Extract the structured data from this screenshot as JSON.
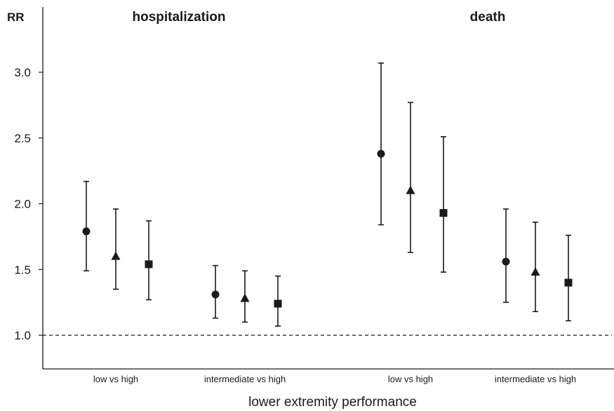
{
  "chart_data": {
    "type": "scatter",
    "ylabel": "RR",
    "xlabel": "lower extremity performance",
    "ylim": [
      0.75,
      3.35
    ],
    "yticks": [
      "1.0",
      "1.5",
      "2.0",
      "2.5",
      "3.0"
    ],
    "ytick_values": [
      1.0,
      1.5,
      2.0,
      2.5,
      3.0
    ],
    "reference_line": 1.0,
    "groups": [
      {
        "label": "low vs high",
        "panel": "hospitalization"
      },
      {
        "label": "intermediate vs high",
        "panel": "hospitalization"
      },
      {
        "label": "low vs high",
        "panel": "death"
      },
      {
        "label": "intermediate vs high",
        "panel": "death"
      }
    ],
    "panels": [
      "hospitalization",
      "death"
    ],
    "marker_shapes": [
      "circle",
      "triangle",
      "square"
    ],
    "points": [
      {
        "group": 0,
        "marker": "circle",
        "rr": 1.79,
        "lower": 1.49,
        "upper": 2.17
      },
      {
        "group": 0,
        "marker": "triangle",
        "rr": 1.6,
        "lower": 1.35,
        "upper": 1.96
      },
      {
        "group": 0,
        "marker": "square",
        "rr": 1.54,
        "lower": 1.27,
        "upper": 1.87
      },
      {
        "group": 1,
        "marker": "circle",
        "rr": 1.31,
        "lower": 1.13,
        "upper": 1.53
      },
      {
        "group": 1,
        "marker": "triangle",
        "rr": 1.28,
        "lower": 1.1,
        "upper": 1.49
      },
      {
        "group": 1,
        "marker": "square",
        "rr": 1.24,
        "lower": 1.07,
        "upper": 1.45
      },
      {
        "group": 2,
        "marker": "circle",
        "rr": 2.38,
        "lower": 1.84,
        "upper": 3.07
      },
      {
        "group": 2,
        "marker": "triangle",
        "rr": 2.1,
        "lower": 1.63,
        "upper": 2.77
      },
      {
        "group": 2,
        "marker": "square",
        "rr": 1.93,
        "lower": 1.48,
        "upper": 2.51
      },
      {
        "group": 3,
        "marker": "circle",
        "rr": 1.56,
        "lower": 1.25,
        "upper": 1.96
      },
      {
        "group": 3,
        "marker": "triangle",
        "rr": 1.48,
        "lower": 1.18,
        "upper": 1.86
      },
      {
        "group": 3,
        "marker": "square",
        "rr": 1.4,
        "lower": 1.11,
        "upper": 1.76
      }
    ],
    "grid": false,
    "marker_color": "#1a1a1a"
  }
}
